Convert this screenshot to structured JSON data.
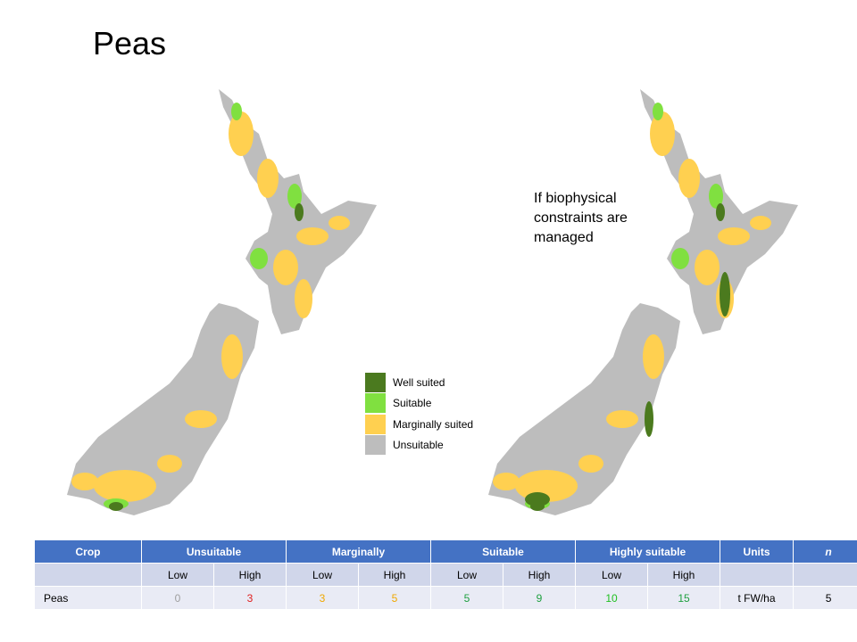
{
  "title": "Peas",
  "annotation": "If biophysical constraints are managed",
  "legend": [
    {
      "label": "Well suited",
      "color": "#4b7a1f"
    },
    {
      "label": "Suitable",
      "color": "#80e040"
    },
    {
      "label": "Marginally suited",
      "color": "#ffd050"
    },
    {
      "label": "Unsuitable",
      "color": "#bdbdbd"
    }
  ],
  "table": {
    "header": [
      "Crop",
      "Unsuitable",
      "Marginally",
      "Suitable",
      "Highly suitable",
      "Units",
      "n"
    ],
    "subheader": [
      "Low",
      "High",
      "Low",
      "High",
      "Low",
      "High",
      "Low",
      "High"
    ],
    "rows": [
      [
        "Peas",
        0,
        3,
        3,
        5,
        5,
        9,
        10,
        15,
        "t FW/ha",
        5
      ]
    ],
    "value_colors": [
      "#9e9e9e",
      "#e02020",
      "#f0a800",
      "#f0a800",
      "#1fa040",
      "#1fa040",
      "#20c020",
      "#1fa040"
    ]
  }
}
